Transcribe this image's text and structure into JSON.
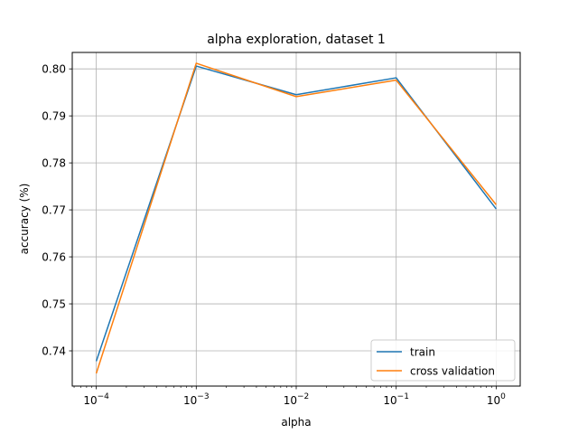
{
  "chart_data": {
    "type": "line",
    "title": "alpha exploration, dataset 1",
    "xlabel": "alpha",
    "ylabel": "accuracy (%)",
    "xscale": "log",
    "x": [
      0.0001,
      0.001,
      0.01,
      0.1,
      1
    ],
    "x_tick_labels": [
      {
        "base": "10",
        "exp": "−4"
      },
      {
        "base": "10",
        "exp": "−3"
      },
      {
        "base": "10",
        "exp": "−2"
      },
      {
        "base": "10",
        "exp": "−1"
      },
      {
        "base": "10",
        "exp": "0"
      }
    ],
    "y_ticks": [
      "0.74",
      "0.75",
      "0.76",
      "0.77",
      "0.78",
      "0.79",
      "0.80"
    ],
    "xlim": [
      5.75e-05,
      1.74
    ],
    "ylim": [
      0.7325,
      0.8035
    ],
    "grid": true,
    "legend_position": "lower-right",
    "series": [
      {
        "name": "train",
        "color": "#1f77b4",
        "values": [
          0.7378,
          0.8006,
          0.7945,
          0.7981,
          0.7702
        ]
      },
      {
        "name": "cross validation",
        "color": "#ff7f0e",
        "values": [
          0.7352,
          0.8012,
          0.7941,
          0.7976,
          0.7711
        ]
      }
    ]
  }
}
